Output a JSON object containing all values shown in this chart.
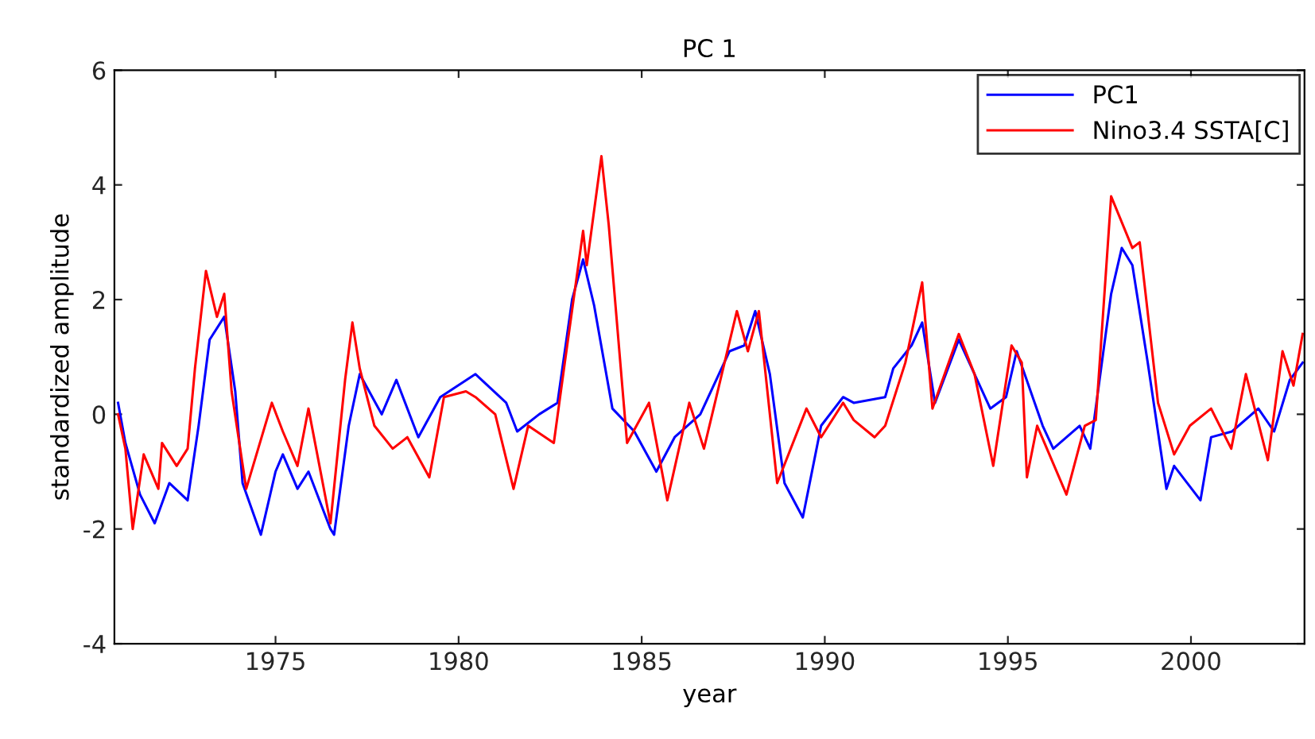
{
  "chart_data": {
    "type": "line",
    "title": "PC 1",
    "xlabel": "year",
    "ylabel": "standardized amplitude",
    "xlim": [
      1970.6,
      2003.1
    ],
    "xticks": [
      1975,
      1980,
      1985,
      1990,
      1995,
      2000
    ],
    "ylim": [
      -4,
      6
    ],
    "yticks": [
      -4,
      -2,
      0,
      2,
      4,
      6
    ],
    "grid": false,
    "legend": "top right",
    "marker": "none",
    "line_style": "solid",
    "series": [
      {
        "name": "PC1",
        "color": "#0000ff",
        "x": [
          1970.7,
          1970.9,
          1971.3,
          1971.7,
          1972.1,
          1972.6,
          1972.9,
          1973.2,
          1973.6,
          1973.9,
          1974.1,
          1974.6,
          1975.0,
          1975.2,
          1975.6,
          1975.9,
          1976.5,
          1976.6,
          1977.0,
          1977.3,
          1977.9,
          1978.3,
          1978.9,
          1979.5,
          1980.46,
          1981.3,
          1981.6,
          1982.2,
          1982.7,
          1983.1,
          1983.4,
          1983.7,
          1984.2,
          1984.8,
          1985.4,
          1985.9,
          1986.6,
          1987.4,
          1987.8,
          1988.1,
          1988.5,
          1988.9,
          1989.4,
          1989.9,
          1990.5,
          1990.79,
          1991.65,
          1991.87,
          1992.37,
          1992.66,
          1993.01,
          1993.66,
          1994.52,
          1994.95,
          1995.24,
          1995.95,
          1996.24,
          1996.96,
          1997.25,
          1997.82,
          1998.11,
          1998.4,
          1998.82,
          1999.33,
          1999.54,
          2000.26,
          2000.55,
          2001.12,
          2001.84,
          2002.27,
          2002.7,
          2003.05
        ],
        "values": [
          0.2,
          -0.5,
          -1.4,
          -1.9,
          -1.2,
          -1.5,
          -0.2,
          1.3,
          1.7,
          0.4,
          -1.2,
          -2.1,
          -1.0,
          -0.7,
          -1.3,
          -1.0,
          -2.0,
          -2.1,
          -0.2,
          0.7,
          0.0,
          0.6,
          -0.4,
          0.3,
          0.7,
          0.2,
          -0.3,
          0.0,
          0.2,
          2.0,
          2.7,
          1.9,
          0.1,
          -0.3,
          -1.0,
          -0.4,
          0.0,
          1.1,
          1.2,
          1.8,
          0.7,
          -1.2,
          -1.8,
          -0.2,
          0.3,
          0.2,
          0.3,
          0.8,
          1.2,
          1.6,
          0.2,
          1.3,
          0.1,
          0.3,
          1.1,
          -0.2,
          -0.6,
          -0.2,
          -0.6,
          2.1,
          2.9,
          2.6,
          0.9,
          -1.3,
          -0.9,
          -1.5,
          -0.4,
          -0.3,
          0.1,
          -0.3,
          0.6,
          0.9
        ]
      },
      {
        "name": "Nino3.4 SSTA[C]",
        "color": "#ff0000",
        "x": [
          1970.7,
          1970.9,
          1971.1,
          1971.4,
          1971.8,
          1971.9,
          1972.3,
          1972.6,
          1972.8,
          1973.1,
          1973.4,
          1973.6,
          1973.8,
          1974.2,
          1974.9,
          1975.2,
          1975.6,
          1975.9,
          1976.5,
          1976.9,
          1977.1,
          1977.3,
          1977.7,
          1978.2,
          1978.6,
          1979.2,
          1979.6,
          1980.2,
          1980.46,
          1981.0,
          1981.5,
          1981.9,
          1982.6,
          1982.9,
          1983.4,
          1983.5,
          1983.9,
          1984.1,
          1984.6,
          1985.2,
          1985.7,
          1986.3,
          1986.7,
          1987.6,
          1987.9,
          1988.2,
          1988.7,
          1989.5,
          1989.9,
          1990.5,
          1990.79,
          1991.36,
          1991.65,
          1992.2,
          1992.66,
          1992.94,
          1993.66,
          1994.09,
          1994.6,
          1995.1,
          1995.38,
          1995.52,
          1995.8,
          1996.6,
          1997.1,
          1997.4,
          1997.82,
          1998.4,
          1998.6,
          1999.1,
          1999.54,
          1999.97,
          2000.55,
          2001.1,
          2001.5,
          2002.1,
          2002.5,
          2002.8,
          2003.05
        ],
        "values": [
          0.0,
          -0.6,
          -2.0,
          -0.7,
          -1.3,
          -0.5,
          -0.9,
          -0.6,
          0.8,
          2.5,
          1.7,
          2.1,
          0.4,
          -1.3,
          0.2,
          -0.3,
          -0.9,
          0.1,
          -1.9,
          0.6,
          1.6,
          0.8,
          -0.2,
          -0.6,
          -0.4,
          -1.1,
          0.3,
          0.4,
          0.3,
          0.0,
          -1.3,
          -0.2,
          -0.5,
          0.9,
          3.2,
          2.6,
          4.5,
          3.3,
          -0.5,
          0.2,
          -1.5,
          0.2,
          -0.6,
          1.8,
          1.1,
          1.8,
          -1.2,
          0.1,
          -0.4,
          0.2,
          -0.1,
          -0.4,
          -0.2,
          0.9,
          2.3,
          0.1,
          1.4,
          0.7,
          -0.9,
          1.2,
          0.9,
          -1.1,
          -0.2,
          -1.4,
          -0.2,
          -0.1,
          3.8,
          2.9,
          3.0,
          0.2,
          -0.7,
          -0.2,
          0.1,
          -0.6,
          0.7,
          -0.8,
          1.1,
          0.5,
          1.4
        ]
      }
    ]
  }
}
